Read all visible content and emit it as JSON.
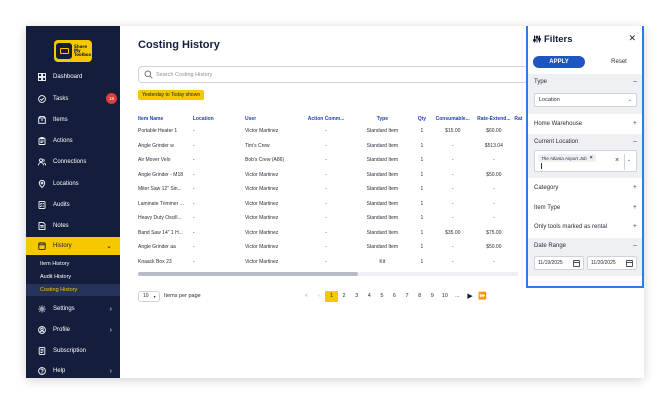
{
  "sidebar": {
    "logo_text": [
      "Share",
      "My",
      "Toolbox"
    ],
    "items": [
      {
        "label": "Dashboard",
        "icon": "grid-icon"
      },
      {
        "label": "Tasks",
        "icon": "check-circle-icon",
        "badge": "19"
      },
      {
        "label": "Items",
        "icon": "box-icon"
      },
      {
        "label": "Actions",
        "icon": "clipboard-icon"
      },
      {
        "label": "Connections",
        "icon": "people-icon"
      },
      {
        "label": "Locations",
        "icon": "map-pin-icon"
      },
      {
        "label": "Audits",
        "icon": "checklist-icon"
      },
      {
        "label": "Notes",
        "icon": "note-icon"
      },
      {
        "label": "History",
        "icon": "history-icon"
      },
      {
        "label": "Settings",
        "icon": "gear-icon"
      },
      {
        "label": "Profile",
        "icon": "user-icon"
      },
      {
        "label": "Subscription",
        "icon": "credit-card-icon"
      },
      {
        "label": "Help",
        "icon": "help-icon"
      }
    ],
    "history_sub": [
      "Item History",
      "Audit History",
      "Costing History"
    ]
  },
  "main": {
    "title": "Costing History",
    "search_placeholder": "Search Costing History",
    "chip": "Yesterday to Today shown",
    "columns": [
      "Item Name",
      "Location",
      "User",
      "Action Comm...",
      "Type",
      "Qty",
      "Consumable...",
      "Rate-Extend...",
      "Rat"
    ],
    "rows": [
      [
        "Portable Heater 1",
        "-",
        "Victor Martinez",
        "-",
        "Standard Item",
        "1",
        "$15.00",
        "$60.00"
      ],
      [
        "Angle Grinder w",
        "-",
        "Tim's Crew",
        "-",
        "Standard Item",
        "1",
        "-",
        "$513.04"
      ],
      [
        "Air Mover Velo",
        "-",
        "Bob's Crew (A86)",
        "-",
        "Standard Item",
        "1",
        "-",
        "-"
      ],
      [
        "Angle Grinder - M18",
        "-",
        "Victor Martinez",
        "-",
        "Standard Item",
        "1",
        "-",
        "$50.00"
      ],
      [
        "Miter Saw 12\" Sin...",
        "-",
        "Victor Martinez",
        "-",
        "Standard Item",
        "1",
        "-",
        "-"
      ],
      [
        "Laminate Trimmer ...",
        "-",
        "Victor Martinez",
        "-",
        "Standard Item",
        "1",
        "-",
        "-"
      ],
      [
        "Heavy Duty Oscill...",
        "-",
        "Victor Martinez",
        "-",
        "Standard Item",
        "1",
        "-",
        "-"
      ],
      [
        "Band Saw 14\" 1 H...",
        "-",
        "Victor Martinez",
        "-",
        "Standard Item",
        "1",
        "$35.00",
        "$75.00"
      ],
      [
        "Angle Grinder aa",
        "-",
        "Victor Martinez",
        "-",
        "Standard Item",
        "1",
        "-",
        "$50.00"
      ],
      [
        "Knaack Box 23",
        "-",
        "Victor Martinez",
        "-",
        "Kit",
        "1",
        "-",
        "-"
      ]
    ],
    "per_page_value": "10",
    "per_page_label": "Items per page",
    "pages": [
      "1",
      "2",
      "3",
      "4",
      "5",
      "6",
      "7",
      "8",
      "9",
      "10"
    ],
    "current_page": "1",
    "ellipsis": "...",
    "scroll_fraction": 0.58
  },
  "filters": {
    "title": "Filters",
    "apply_label": "APPLY",
    "reset_label": "Reset",
    "type_label": "Type",
    "type_value": "Location",
    "home_warehouse_label": "Home Warehouse",
    "current_location_label": "Current Location",
    "current_location_tag": "The Atlanta Airport Job",
    "category_label": "Category",
    "item_type_label": "Item Type",
    "rental_label": "Only tools marked as rental",
    "date_range_label": "Date Range",
    "date_from": "11/19/2025",
    "date_to": "11/20/2025"
  },
  "colors": {
    "sidebar_bg": "#141d3b",
    "accent": "#f5c900",
    "link": "#1f46b0",
    "primary_button": "#1f55c2",
    "panel_border": "#2f7de0",
    "badge": "#e23b3b"
  }
}
